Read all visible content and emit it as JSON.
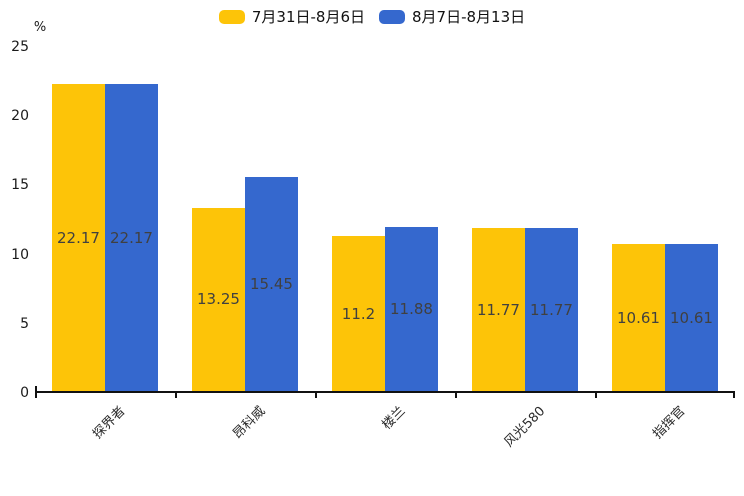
{
  "chart_data": {
    "type": "bar",
    "title": "",
    "xlabel": "",
    "ylabel": "%",
    "ylim": [
      0,
      25
    ],
    "yticks": [
      0,
      5,
      10,
      15,
      20,
      25
    ],
    "grid": false,
    "legend_position": "top-center",
    "categories": [
      "探界者",
      "昂科威",
      "楼兰",
      "风光580",
      "指挥官"
    ],
    "series": [
      {
        "name": "7月31日-8月6日",
        "color": "#FDC408",
        "values": [
          22.17,
          13.25,
          11.2,
          11.77,
          10.61
        ]
      },
      {
        "name": "8月7日-8月13日",
        "color": "#3568CE",
        "values": [
          22.17,
          15.45,
          11.88,
          11.77,
          10.61
        ]
      }
    ],
    "bar_label_color": "#404040",
    "axis_color": "#111111"
  }
}
